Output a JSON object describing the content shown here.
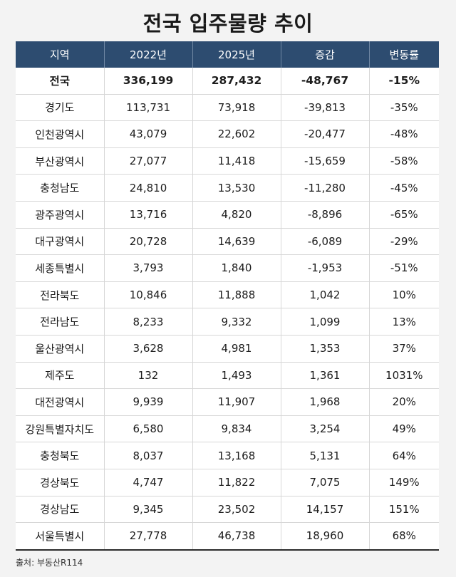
{
  "title": "전국 입주물량 추이",
  "source": "출처: 부동산R114",
  "chart_data": {
    "type": "table",
    "title": "전국 입주물량 추이",
    "columns": [
      "지역",
      "2022년",
      "2025년",
      "증감",
      "변동률"
    ],
    "rows": [
      [
        "전국",
        "336,199",
        "287,432",
        "-48,767",
        "-15%"
      ],
      [
        "경기도",
        "113,731",
        "73,918",
        "-39,813",
        "-35%"
      ],
      [
        "인천광역시",
        "43,079",
        "22,602",
        "-20,477",
        "-48%"
      ],
      [
        "부산광역시",
        "27,077",
        "11,418",
        "-15,659",
        "-58%"
      ],
      [
        "충청남도",
        "24,810",
        "13,530",
        "-11,280",
        "-45%"
      ],
      [
        "광주광역시",
        "13,716",
        "4,820",
        "-8,896",
        "-65%"
      ],
      [
        "대구광역시",
        "20,728",
        "14,639",
        "-6,089",
        "-29%"
      ],
      [
        "세종특별시",
        "3,793",
        "1,840",
        "-1,953",
        "-51%"
      ],
      [
        "전라북도",
        "10,846",
        "11,888",
        "1,042",
        "10%"
      ],
      [
        "전라남도",
        "8,233",
        "9,332",
        "1,099",
        "13%"
      ],
      [
        "울산광역시",
        "3,628",
        "4,981",
        "1,353",
        "37%"
      ],
      [
        "제주도",
        "132",
        "1,493",
        "1,361",
        "1031%"
      ],
      [
        "대전광역시",
        "9,939",
        "11,907",
        "1,968",
        "20%"
      ],
      [
        "강원특별자치도",
        "6,580",
        "9,834",
        "3,254",
        "49%"
      ],
      [
        "충청북도",
        "8,037",
        "13,168",
        "5,131",
        "64%"
      ],
      [
        "경상북도",
        "4,747",
        "11,822",
        "7,075",
        "149%"
      ],
      [
        "경상남도",
        "9,345",
        "23,502",
        "14,157",
        "151%"
      ],
      [
        "서울특별시",
        "27,778",
        "46,738",
        "18,960",
        "68%"
      ]
    ]
  }
}
